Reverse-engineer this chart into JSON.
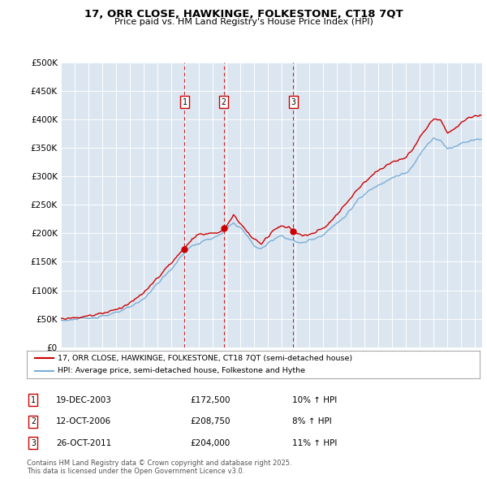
{
  "title_line1": "17, ORR CLOSE, HAWKINGE, FOLKESTONE, CT18 7QT",
  "title_line2": "Price paid vs. HM Land Registry's House Price Index (HPI)",
  "legend_red": "17, ORR CLOSE, HAWKINGE, FOLKESTONE, CT18 7QT (semi-detached house)",
  "legend_blue": "HPI: Average price, semi-detached house, Folkestone and Hythe",
  "footer": "Contains HM Land Registry data © Crown copyright and database right 2025.\nThis data is licensed under the Open Government Licence v3.0.",
  "sale_year_floats": [
    2003.96,
    2006.79,
    2011.82
  ],
  "sale_prices": [
    172500,
    208750,
    204000
  ],
  "sale_labels": [
    "1",
    "2",
    "3"
  ],
  "red_color": "#cc0000",
  "blue_color": "#7aaed6",
  "plot_bg": "#dce6f1",
  "ylim": [
    0,
    500000
  ],
  "yticks": [
    0,
    50000,
    100000,
    150000,
    200000,
    250000,
    300000,
    350000,
    400000,
    450000,
    500000
  ],
  "ytick_labels": [
    "£0",
    "£50K",
    "£100K",
    "£150K",
    "£200K",
    "£250K",
    "£300K",
    "£350K",
    "£400K",
    "£450K",
    "£500K"
  ],
  "xlim": [
    1995.0,
    2025.5
  ],
  "xticks": [
    1995,
    1996,
    1997,
    1998,
    1999,
    2000,
    2001,
    2002,
    2003,
    2004,
    2005,
    2006,
    2007,
    2008,
    2009,
    2010,
    2011,
    2012,
    2013,
    2014,
    2015,
    2016,
    2017,
    2018,
    2019,
    2020,
    2021,
    2022,
    2023,
    2024,
    2025
  ],
  "sale_details": [
    [
      "1",
      "19-DEC-2003",
      "£172,500",
      "10% ↑ HPI"
    ],
    [
      "2",
      "12-OCT-2006",
      "£208,750",
      "8% ↑ HPI"
    ],
    [
      "3",
      "26-OCT-2011",
      "£204,000",
      "11% ↑ HPI"
    ]
  ],
  "hpi_anchors": [
    [
      1995.0,
      47000
    ],
    [
      1996.0,
      49000
    ],
    [
      1997.0,
      51000
    ],
    [
      1998.0,
      55000
    ],
    [
      1999.0,
      60000
    ],
    [
      2000.0,
      70000
    ],
    [
      2001.0,
      85000
    ],
    [
      2002.0,
      112000
    ],
    [
      2003.0,
      137000
    ],
    [
      2004.0,
      168000
    ],
    [
      2004.5,
      178000
    ],
    [
      2005.0,
      182000
    ],
    [
      2005.5,
      188000
    ],
    [
      2006.0,
      192000
    ],
    [
      2006.5,
      196000
    ],
    [
      2007.0,
      208000
    ],
    [
      2007.5,
      218000
    ],
    [
      2008.0,
      210000
    ],
    [
      2008.5,
      195000
    ],
    [
      2009.0,
      178000
    ],
    [
      2009.5,
      172000
    ],
    [
      2010.0,
      182000
    ],
    [
      2010.5,
      192000
    ],
    [
      2011.0,
      196000
    ],
    [
      2011.5,
      190000
    ],
    [
      2012.0,
      185000
    ],
    [
      2012.5,
      183000
    ],
    [
      2013.0,
      188000
    ],
    [
      2013.5,
      192000
    ],
    [
      2014.0,
      198000
    ],
    [
      2014.5,
      208000
    ],
    [
      2015.0,
      218000
    ],
    [
      2015.5,
      228000
    ],
    [
      2016.0,
      242000
    ],
    [
      2016.5,
      258000
    ],
    [
      2017.0,
      268000
    ],
    [
      2017.5,
      278000
    ],
    [
      2018.0,
      285000
    ],
    [
      2018.5,
      292000
    ],
    [
      2019.0,
      298000
    ],
    [
      2019.5,
      302000
    ],
    [
      2020.0,
      305000
    ],
    [
      2020.5,
      318000
    ],
    [
      2021.0,
      338000
    ],
    [
      2021.5,
      355000
    ],
    [
      2022.0,
      368000
    ],
    [
      2022.5,
      362000
    ],
    [
      2023.0,
      348000
    ],
    [
      2023.5,
      352000
    ],
    [
      2024.0,
      358000
    ],
    [
      2024.5,
      362000
    ],
    [
      2025.0,
      365000
    ]
  ],
  "red_anchors": [
    [
      1995.0,
      50000
    ],
    [
      1996.0,
      52000
    ],
    [
      1997.0,
      55000
    ],
    [
      1998.0,
      60000
    ],
    [
      1999.0,
      66000
    ],
    [
      2000.0,
      78000
    ],
    [
      2001.0,
      95000
    ],
    [
      2002.0,
      122000
    ],
    [
      2003.0,
      148000
    ],
    [
      2003.96,
      172500
    ],
    [
      2004.0,
      175000
    ],
    [
      2004.5,
      192000
    ],
    [
      2005.0,
      196000
    ],
    [
      2005.5,
      200000
    ],
    [
      2006.0,
      200000
    ],
    [
      2006.5,
      200000
    ],
    [
      2006.79,
      208750
    ],
    [
      2007.0,
      212000
    ],
    [
      2007.5,
      232000
    ],
    [
      2008.0,
      218000
    ],
    [
      2008.5,
      202000
    ],
    [
      2009.0,
      188000
    ],
    [
      2009.5,
      182000
    ],
    [
      2010.0,
      195000
    ],
    [
      2010.5,
      208000
    ],
    [
      2011.0,
      212000
    ],
    [
      2011.5,
      210000
    ],
    [
      2011.82,
      204000
    ],
    [
      2012.0,
      200000
    ],
    [
      2012.5,
      195000
    ],
    [
      2013.0,
      198000
    ],
    [
      2013.5,
      202000
    ],
    [
      2014.0,
      208000
    ],
    [
      2014.5,
      220000
    ],
    [
      2015.0,
      232000
    ],
    [
      2015.5,
      248000
    ],
    [
      2016.0,
      262000
    ],
    [
      2016.5,
      278000
    ],
    [
      2017.0,
      290000
    ],
    [
      2017.5,
      302000
    ],
    [
      2018.0,
      310000
    ],
    [
      2018.5,
      318000
    ],
    [
      2019.0,
      325000
    ],
    [
      2019.5,
      330000
    ],
    [
      2020.0,
      332000
    ],
    [
      2020.5,
      348000
    ],
    [
      2021.0,
      368000
    ],
    [
      2021.5,
      385000
    ],
    [
      2022.0,
      402000
    ],
    [
      2022.5,
      398000
    ],
    [
      2023.0,
      375000
    ],
    [
      2023.5,
      382000
    ],
    [
      2024.0,
      395000
    ],
    [
      2024.5,
      402000
    ],
    [
      2025.0,
      405000
    ]
  ]
}
